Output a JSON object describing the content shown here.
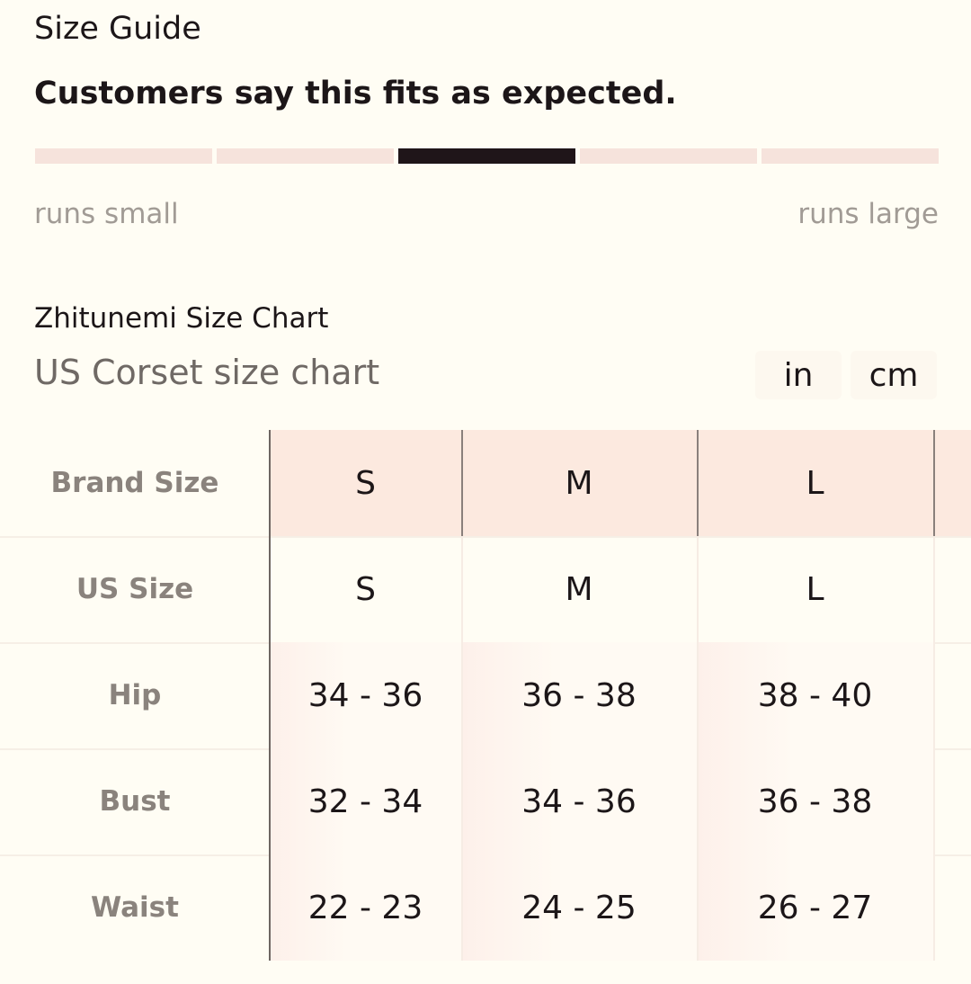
{
  "header": {
    "title": "Size Guide",
    "fit_summary": "Customers say this fits as expected."
  },
  "fit_scale": {
    "low_label": "runs small",
    "high_label": "runs large"
  },
  "size_chart": {
    "brand_title": "Zhitunemi Size Chart",
    "chart_title": "US Corset size chart",
    "units": [
      "in",
      "cm"
    ],
    "table": {
      "header": [
        "Brand Size",
        "S",
        "M",
        "L"
      ],
      "rows": [
        [
          "US Size",
          "S",
          "M",
          "L"
        ],
        [
          "Hip",
          "34 - 36",
          "36 - 38",
          "38 - 40"
        ],
        [
          "Bust",
          "32 - 34",
          "34 - 36",
          "36 - 38"
        ],
        [
          "Waist",
          "22 - 23",
          "24 - 25",
          "26 - 27"
        ]
      ]
    }
  }
}
